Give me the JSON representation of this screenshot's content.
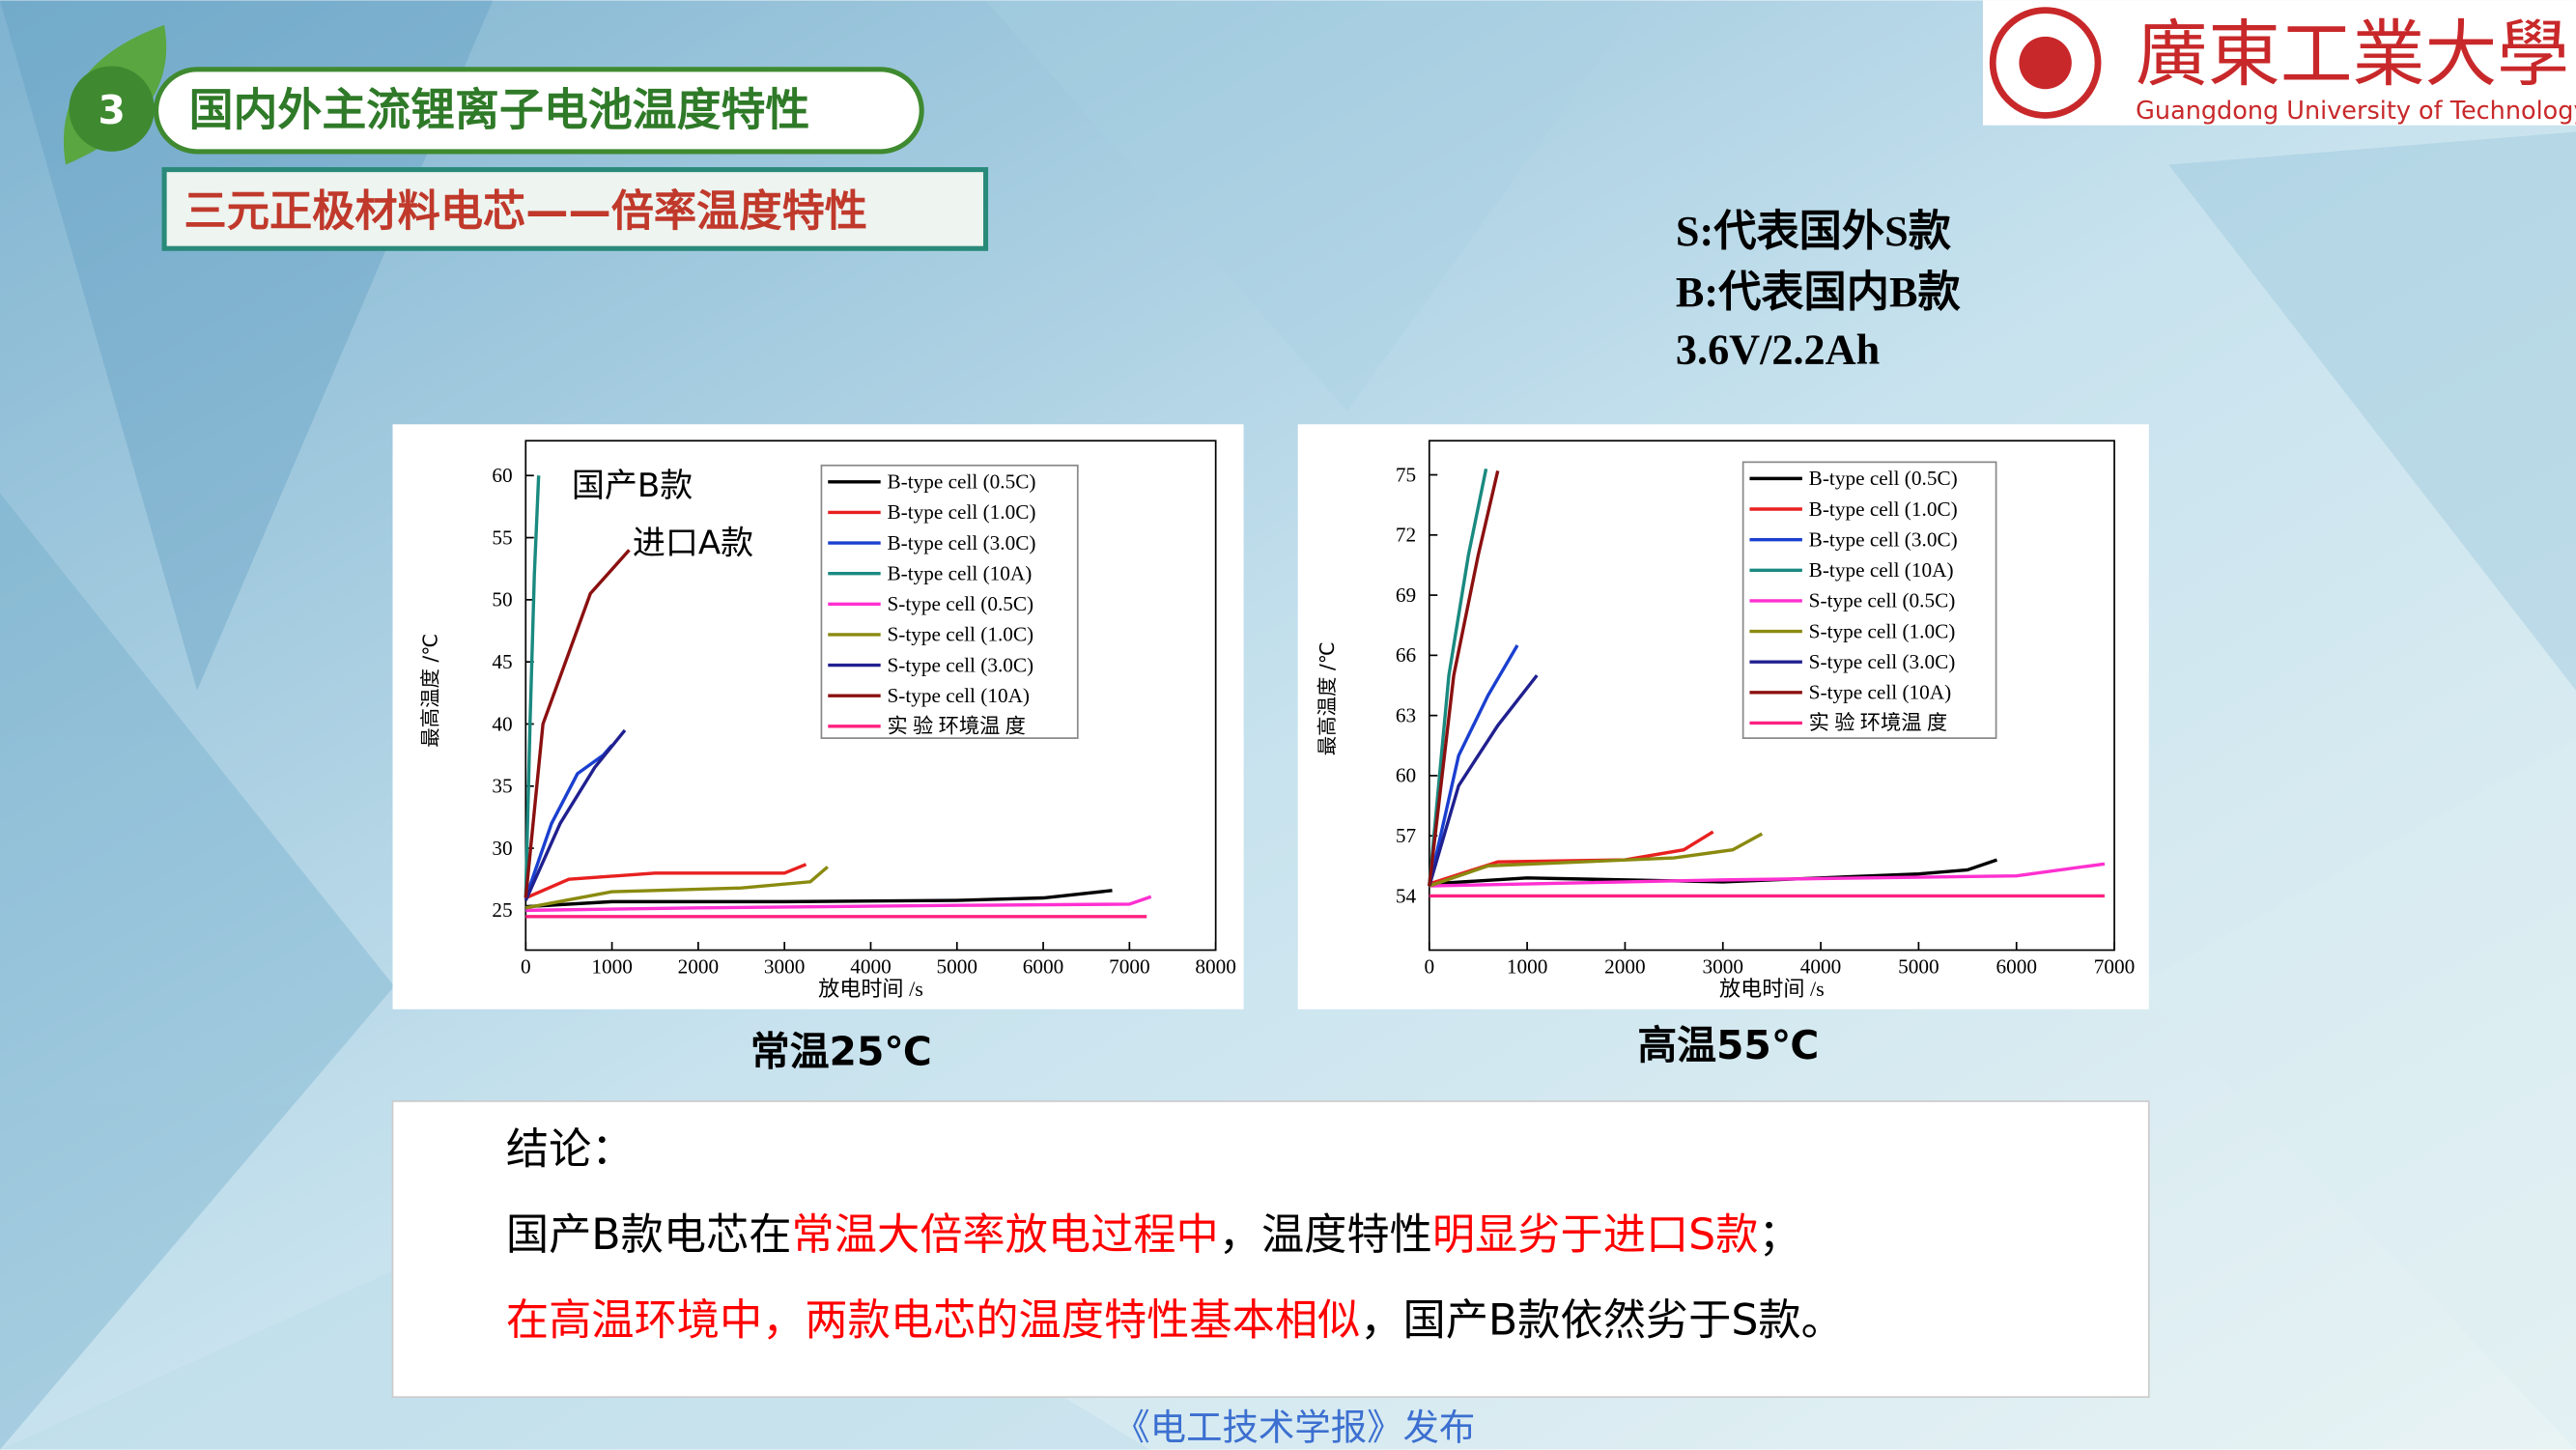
{
  "header": {
    "number": "3",
    "title": "国内外主流锂离子电池温度特性",
    "subtitle": "三元正极材料电芯——倍率温度特性"
  },
  "logo": {
    "name": "廣東工業大學",
    "english": "Guangdong University of Technology"
  },
  "notes": [
    "S:代表国外S款",
    "B:代表国内B款",
    "3.6V/2.2Ah"
  ],
  "chart_data": [
    {
      "type": "line",
      "caption": "常温25℃",
      "xlabel": "放电时间 /s",
      "ylabel": "最高温度 /℃",
      "legend": "upper right",
      "xlim": [
        0,
        8000
      ],
      "ylim": [
        21.8,
        62.8
      ],
      "xticks": [
        0,
        1000,
        2000,
        3000,
        4000,
        5000,
        6000,
        7000,
        8000
      ],
      "yticks": [
        25,
        30,
        35,
        40,
        45,
        50,
        55,
        60
      ],
      "annotations": [
        "国产B款",
        "进口A款"
      ],
      "series": [
        {
          "name": "B-type cell (0.5C)",
          "color": "#000000",
          "x": [
            0,
            1000,
            3000,
            5000,
            6000,
            6800
          ],
          "values": [
            25.3,
            25.7,
            25.7,
            25.8,
            26,
            26.6
          ]
        },
        {
          "name": "B-type cell (1.0C)",
          "color": "#e82020",
          "x": [
            0,
            500,
            1500,
            3000,
            3250
          ],
          "values": [
            26,
            27.5,
            28,
            28,
            28.7
          ]
        },
        {
          "name": "B-type cell (3.0C)",
          "color": "#1a3fd0",
          "x": [
            0,
            300,
            600,
            900,
            1000
          ],
          "values": [
            26,
            32,
            36,
            37.5,
            38.3
          ]
        },
        {
          "name": "B-type cell (10A)",
          "color": "#1a8a80",
          "x": [
            0,
            50,
            100,
            150
          ],
          "values": [
            26,
            40,
            52,
            60
          ]
        },
        {
          "name": "S-type cell (0.5C)",
          "color": "#ff30d0",
          "x": [
            0,
            2000,
            5000,
            7000,
            7250
          ],
          "values": [
            25,
            25.2,
            25.4,
            25.5,
            26.1
          ]
        },
        {
          "name": "S-type cell (1.0C)",
          "color": "#8a8a10",
          "x": [
            0,
            1000,
            2500,
            3300,
            3500
          ],
          "values": [
            25.2,
            26.5,
            26.8,
            27.3,
            28.5
          ]
        },
        {
          "name": "S-type cell  (3.0C)",
          "color": "#202090",
          "x": [
            0,
            400,
            800,
            1150
          ],
          "values": [
            25.8,
            32,
            36.5,
            39.5
          ]
        },
        {
          "name": "S-type cell  (10A)",
          "color": "#8b1010",
          "x": [
            0,
            200,
            750,
            1200
          ],
          "values": [
            26,
            40,
            50.5,
            54
          ]
        },
        {
          "name": "实 验 环境温 度",
          "color": "#ff2080",
          "x": [
            0,
            7200
          ],
          "values": [
            24.5,
            24.5
          ]
        }
      ]
    },
    {
      "type": "line",
      "caption": "高温55℃",
      "xlabel": "放电时间 /s",
      "ylabel": "最高温度 /℃",
      "legend": "upper right",
      "xlim": [
        0,
        7000
      ],
      "ylim": [
        51.3,
        76.7
      ],
      "xticks": [
        0,
        1000,
        2000,
        3000,
        4000,
        5000,
        6000,
        7000
      ],
      "yticks": [
        54,
        57,
        60,
        63,
        66,
        69,
        72,
        75
      ],
      "series": [
        {
          "name": "B-type cell (0.5C)",
          "color": "#000000",
          "x": [
            0,
            1000,
            3000,
            5000,
            5500,
            5800
          ],
          "values": [
            54.6,
            54.9,
            54.7,
            55.1,
            55.3,
            55.8
          ]
        },
        {
          "name": "B-type cell (1.0C)",
          "color": "#e82020",
          "x": [
            0,
            700,
            2000,
            2600,
            2900
          ],
          "values": [
            54.6,
            55.7,
            55.8,
            56.3,
            57.2
          ]
        },
        {
          "name": "B-type cell (3.0C)",
          "color": "#1a3fd0",
          "x": [
            0,
            300,
            600,
            900
          ],
          "values": [
            54.5,
            61,
            64,
            66.5
          ]
        },
        {
          "name": "B-type cell (10A)",
          "color": "#1a8a80",
          "x": [
            0,
            200,
            400,
            580
          ],
          "values": [
            54.5,
            65,
            71,
            75.3
          ]
        },
        {
          "name": "S-type cell (0.5C)",
          "color": "#ff30d0",
          "x": [
            0,
            3000,
            6000,
            6900
          ],
          "values": [
            54.5,
            54.8,
            55,
            55.6
          ]
        },
        {
          "name": "S-type cell (1.0C)",
          "color": "#8a8a10",
          "x": [
            0,
            600,
            2500,
            3100,
            3400
          ],
          "values": [
            54.5,
            55.5,
            55.9,
            56.3,
            57.1
          ]
        },
        {
          "name": "S-type cell (3.0C)",
          "color": "#202090",
          "x": [
            0,
            300,
            700,
            1100
          ],
          "values": [
            54.5,
            59.5,
            62.5,
            65
          ]
        },
        {
          "name": "S-type cell (10A)",
          "color": "#8b1010",
          "x": [
            0,
            250,
            500,
            700
          ],
          "values": [
            54.5,
            65,
            71,
            75.2
          ]
        },
        {
          "name": "实 验 环境温 度",
          "color": "#ff2080",
          "x": [
            0,
            6900
          ],
          "values": [
            54,
            54
          ]
        }
      ]
    }
  ],
  "conclusion": {
    "title": "结论：",
    "lines": [
      [
        {
          "text": "国产B款电芯在",
          "color": "#000000"
        },
        {
          "text": "常温大倍率放电过程中",
          "color": "#ff0000"
        },
        {
          "text": "，温度特性",
          "color": "#000000"
        },
        {
          "text": "明显劣于进口S款",
          "color": "#ff0000"
        },
        {
          "text": "；",
          "color": "#000000"
        }
      ],
      [
        {
          "text": "在高温环境中，两款电芯的温度特性基本相似",
          "color": "#ff0000"
        },
        {
          "text": "，国产B款依然劣于S款。",
          "color": "#000000"
        }
      ]
    ]
  },
  "footer": "《电工技术学报》发布"
}
